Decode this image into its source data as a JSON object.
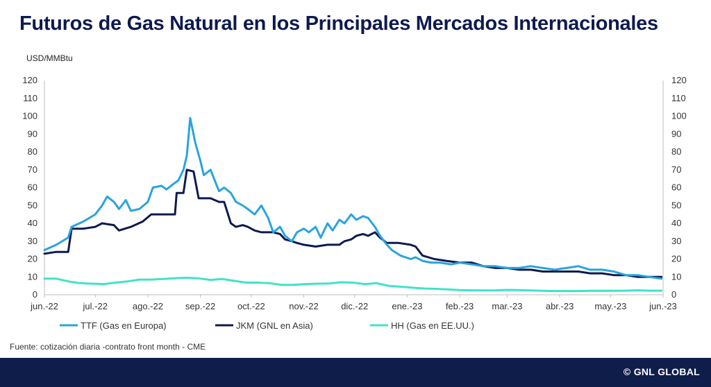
{
  "title": "Futuros de Gas Natural en los Principales Mercados Internacionales",
  "source": "Fuente: cotización diaria -contrato front month - CME",
  "brand": "© GNL GLOBAL",
  "chart_data": {
    "type": "line",
    "ylabel": "USD/MMBtu",
    "ylim": [
      0,
      120
    ],
    "y_ticks": [
      0,
      10,
      20,
      30,
      40,
      50,
      60,
      70,
      80,
      90,
      100,
      110,
      120
    ],
    "x_ticks": [
      "jun.-22",
      "jul.-22",
      "ago.-22",
      "sep.-22",
      "oct.-22",
      "nov.-22",
      "dic.-22",
      "ene.-23",
      "feb.-23",
      "mar.-23",
      "abr.-23",
      "may.-23",
      "jun.-23"
    ],
    "xlim": [
      "2022-06-01",
      "2023-06-01"
    ],
    "legend_position": "bottom",
    "series": [
      {
        "name": "TTF (Gas en Europa)",
        "color": "#29a3e0",
        "points": [
          [
            "2022-06-01",
            25
          ],
          [
            "2022-06-08",
            28
          ],
          [
            "2022-06-15",
            32
          ],
          [
            "2022-06-17",
            38
          ],
          [
            "2022-06-24",
            41
          ],
          [
            "2022-07-01",
            45
          ],
          [
            "2022-07-05",
            50
          ],
          [
            "2022-07-08",
            55
          ],
          [
            "2022-07-12",
            52
          ],
          [
            "2022-07-15",
            48
          ],
          [
            "2022-07-19",
            53
          ],
          [
            "2022-07-22",
            47
          ],
          [
            "2022-07-27",
            48
          ],
          [
            "2022-08-01",
            52
          ],
          [
            "2022-08-04",
            60
          ],
          [
            "2022-08-09",
            61
          ],
          [
            "2022-08-12",
            59
          ],
          [
            "2022-08-16",
            62
          ],
          [
            "2022-08-19",
            64
          ],
          [
            "2022-08-22",
            70
          ],
          [
            "2022-08-24",
            78
          ],
          [
            "2022-08-26",
            99
          ],
          [
            "2022-08-29",
            85
          ],
          [
            "2022-09-01",
            75
          ],
          [
            "2022-09-03",
            67
          ],
          [
            "2022-09-07",
            70
          ],
          [
            "2022-09-12",
            58
          ],
          [
            "2022-09-15",
            60
          ],
          [
            "2022-09-19",
            57
          ],
          [
            "2022-09-22",
            52
          ],
          [
            "2022-09-26",
            50
          ],
          [
            "2022-09-29",
            48
          ],
          [
            "2022-10-03",
            45
          ],
          [
            "2022-10-07",
            50
          ],
          [
            "2022-10-11",
            43
          ],
          [
            "2022-10-14",
            35
          ],
          [
            "2022-10-18",
            38
          ],
          [
            "2022-10-21",
            33
          ],
          [
            "2022-10-25",
            30
          ],
          [
            "2022-10-28",
            35
          ],
          [
            "2022-11-01",
            37
          ],
          [
            "2022-11-04",
            35
          ],
          [
            "2022-11-08",
            38
          ],
          [
            "2022-11-11",
            32
          ],
          [
            "2022-11-15",
            40
          ],
          [
            "2022-11-18",
            36
          ],
          [
            "2022-11-22",
            42
          ],
          [
            "2022-11-25",
            40
          ],
          [
            "2022-11-29",
            45
          ],
          [
            "2022-12-02",
            42
          ],
          [
            "2022-12-06",
            44
          ],
          [
            "2022-12-09",
            43
          ],
          [
            "2022-12-13",
            38
          ],
          [
            "2022-12-16",
            33
          ],
          [
            "2022-12-20",
            28
          ],
          [
            "2022-12-23",
            25
          ],
          [
            "2022-12-28",
            22
          ],
          [
            "2023-01-03",
            20
          ],
          [
            "2023-01-06",
            21
          ],
          [
            "2023-01-10",
            19
          ],
          [
            "2023-01-15",
            18
          ],
          [
            "2023-01-20",
            18
          ],
          [
            "2023-01-27",
            17
          ],
          [
            "2023-02-01",
            18
          ],
          [
            "2023-02-08",
            17
          ],
          [
            "2023-02-15",
            16
          ],
          [
            "2023-02-22",
            16
          ],
          [
            "2023-03-01",
            15
          ],
          [
            "2023-03-08",
            15
          ],
          [
            "2023-03-15",
            16
          ],
          [
            "2023-03-22",
            15
          ],
          [
            "2023-03-29",
            14
          ],
          [
            "2023-04-05",
            15
          ],
          [
            "2023-04-12",
            16
          ],
          [
            "2023-04-19",
            14
          ],
          [
            "2023-04-26",
            14
          ],
          [
            "2023-05-03",
            13
          ],
          [
            "2023-05-10",
            11
          ],
          [
            "2023-05-17",
            11
          ],
          [
            "2023-05-24",
            10
          ],
          [
            "2023-05-31",
            9
          ]
        ]
      },
      {
        "name": "JKM (GNL en Asia)",
        "color": "#0d1a4f",
        "points": [
          [
            "2022-06-01",
            23
          ],
          [
            "2022-06-08",
            24
          ],
          [
            "2022-06-15",
            24
          ],
          [
            "2022-06-17",
            37
          ],
          [
            "2022-06-24",
            37
          ],
          [
            "2022-07-01",
            38
          ],
          [
            "2022-07-05",
            40
          ],
          [
            "2022-07-12",
            39
          ],
          [
            "2022-07-15",
            36
          ],
          [
            "2022-07-22",
            38
          ],
          [
            "2022-07-29",
            41
          ],
          [
            "2022-08-03",
            45
          ],
          [
            "2022-08-10",
            45
          ],
          [
            "2022-08-17",
            45
          ],
          [
            "2022-08-18",
            57
          ],
          [
            "2022-08-22",
            57
          ],
          [
            "2022-08-24",
            70
          ],
          [
            "2022-08-28",
            69
          ],
          [
            "2022-08-31",
            54
          ],
          [
            "2022-09-07",
            54
          ],
          [
            "2022-09-12",
            52
          ],
          [
            "2022-09-15",
            52
          ],
          [
            "2022-09-19",
            40
          ],
          [
            "2022-09-22",
            38
          ],
          [
            "2022-09-26",
            39
          ],
          [
            "2022-09-29",
            38
          ],
          [
            "2022-10-03",
            36
          ],
          [
            "2022-10-07",
            35
          ],
          [
            "2022-10-14",
            35
          ],
          [
            "2022-10-18",
            34
          ],
          [
            "2022-10-21",
            31
          ],
          [
            "2022-10-25",
            30
          ],
          [
            "2022-10-28",
            29
          ],
          [
            "2022-11-01",
            28
          ],
          [
            "2022-11-08",
            27
          ],
          [
            "2022-11-15",
            28
          ],
          [
            "2022-11-22",
            28
          ],
          [
            "2022-11-25",
            30
          ],
          [
            "2022-11-29",
            31
          ],
          [
            "2022-12-02",
            33
          ],
          [
            "2022-12-06",
            34
          ],
          [
            "2022-12-09",
            33
          ],
          [
            "2022-12-13",
            35
          ],
          [
            "2022-12-16",
            32
          ],
          [
            "2022-12-20",
            29
          ],
          [
            "2022-12-27",
            29
          ],
          [
            "2023-01-03",
            28
          ],
          [
            "2023-01-06",
            27
          ],
          [
            "2023-01-10",
            22
          ],
          [
            "2023-01-17",
            20
          ],
          [
            "2023-01-24",
            19
          ],
          [
            "2023-02-01",
            18
          ],
          [
            "2023-02-08",
            18
          ],
          [
            "2023-02-15",
            16
          ],
          [
            "2023-02-22",
            15
          ],
          [
            "2023-03-01",
            15
          ],
          [
            "2023-03-08",
            14
          ],
          [
            "2023-03-15",
            14
          ],
          [
            "2023-03-22",
            13
          ],
          [
            "2023-03-29",
            13
          ],
          [
            "2023-04-05",
            13
          ],
          [
            "2023-04-12",
            13
          ],
          [
            "2023-04-19",
            12
          ],
          [
            "2023-04-26",
            12
          ],
          [
            "2023-05-03",
            11
          ],
          [
            "2023-05-10",
            11
          ],
          [
            "2023-05-17",
            10
          ],
          [
            "2023-05-24",
            10
          ],
          [
            "2023-05-31",
            10
          ]
        ]
      },
      {
        "name": "HH (Gas en EE.UU.)",
        "color": "#3fe3c8",
        "points": [
          [
            "2022-06-01",
            9
          ],
          [
            "2022-06-08",
            9
          ],
          [
            "2022-06-15",
            7.5
          ],
          [
            "2022-06-22",
            6.5
          ],
          [
            "2022-06-29",
            6.2
          ],
          [
            "2022-07-06",
            6
          ],
          [
            "2022-07-13",
            6.8
          ],
          [
            "2022-07-20",
            7.5
          ],
          [
            "2022-07-27",
            8.5
          ],
          [
            "2022-08-03",
            8.5
          ],
          [
            "2022-08-10",
            8.8
          ],
          [
            "2022-08-17",
            9.3
          ],
          [
            "2022-08-24",
            9.5
          ],
          [
            "2022-08-31",
            9.2
          ],
          [
            "2022-09-07",
            8.3
          ],
          [
            "2022-09-14",
            8.8
          ],
          [
            "2022-09-21",
            7.8
          ],
          [
            "2022-09-28",
            6.8
          ],
          [
            "2022-10-05",
            6.8
          ],
          [
            "2022-10-12",
            6.5
          ],
          [
            "2022-10-19",
            5.5
          ],
          [
            "2022-10-26",
            5.5
          ],
          [
            "2022-11-02",
            6
          ],
          [
            "2022-11-09",
            6.2
          ],
          [
            "2022-11-16",
            6.3
          ],
          [
            "2022-11-23",
            7
          ],
          [
            "2022-11-30",
            6.8
          ],
          [
            "2022-12-07",
            6
          ],
          [
            "2022-12-14",
            6.5
          ],
          [
            "2022-12-21",
            5
          ],
          [
            "2022-12-28",
            4.5
          ],
          [
            "2023-01-04",
            4
          ],
          [
            "2023-01-11",
            3.5
          ],
          [
            "2023-01-18",
            3.3
          ],
          [
            "2023-01-25",
            3
          ],
          [
            "2023-02-01",
            2.6
          ],
          [
            "2023-02-08",
            2.5
          ],
          [
            "2023-02-15",
            2.4
          ],
          [
            "2023-02-22",
            2.5
          ],
          [
            "2023-03-01",
            2.7
          ],
          [
            "2023-03-08",
            2.6
          ],
          [
            "2023-03-15",
            2.4
          ],
          [
            "2023-03-22",
            2.2
          ],
          [
            "2023-03-29",
            2.1
          ],
          [
            "2023-04-05",
            2.1
          ],
          [
            "2023-04-12",
            2.1
          ],
          [
            "2023-04-19",
            2.2
          ],
          [
            "2023-04-26",
            2.2
          ],
          [
            "2023-05-03",
            2.2
          ],
          [
            "2023-05-10",
            2.3
          ],
          [
            "2023-05-17",
            2.5
          ],
          [
            "2023-05-24",
            2.3
          ],
          [
            "2023-05-31",
            2.3
          ]
        ]
      }
    ]
  }
}
